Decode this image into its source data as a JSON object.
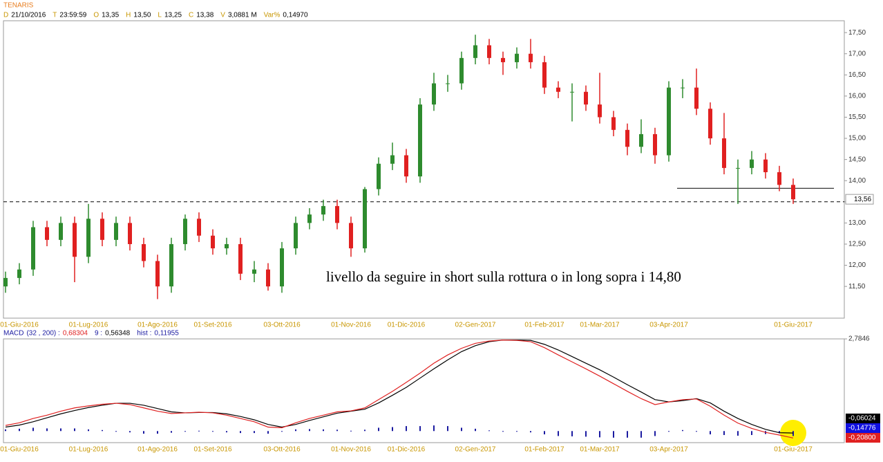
{
  "chart_data": [
    {
      "type": "candlestick",
      "title": "TENARIS",
      "info": [
        {
          "label": "D",
          "value": "21/10/2016"
        },
        {
          "label": "T",
          "value": "23:59:59"
        },
        {
          "label": "O",
          "value": "13,35"
        },
        {
          "label": "H",
          "value": "13,50"
        },
        {
          "label": "L",
          "value": "13,25"
        },
        {
          "label": "C",
          "value": "13,38"
        },
        {
          "label": "V",
          "value": "3,0881 M"
        },
        {
          "label": "Var%",
          "value": "0,14970"
        }
      ],
      "categories": [
        null,
        "01-Giu-2016",
        null,
        null,
        null,
        null,
        "01-Lug-2016",
        null,
        null,
        null,
        null,
        "01-Ago-2016",
        null,
        null,
        null,
        "01-Set-2016",
        null,
        null,
        null,
        null,
        "03-Ott-2016",
        null,
        null,
        null,
        null,
        "01-Nov-2016",
        null,
        null,
        null,
        "01-Dic-2016",
        null,
        null,
        null,
        null,
        "02-Gen-2017",
        null,
        null,
        null,
        null,
        "01-Feb-2017",
        null,
        null,
        null,
        "01-Mar-2017",
        null,
        null,
        null,
        null,
        "03-Apr-2017",
        null,
        null,
        null,
        null,
        null,
        null,
        null,
        null,
        "01-Giu-2017"
      ],
      "open": [
        11.5,
        11.7,
        11.9,
        12.9,
        12.6,
        13.0,
        12.2,
        13.1,
        12.6,
        13.0,
        12.5,
        12.1,
        11.5,
        12.5,
        13.1,
        12.7,
        12.4,
        12.5,
        11.8,
        11.9,
        11.5,
        12.4,
        13.0,
        13.2,
        13.4,
        13.0,
        12.4,
        13.8,
        14.4,
        14.6,
        14.1,
        15.8,
        16.3,
        16.3,
        16.9,
        17.2,
        16.9,
        16.8,
        17.0,
        16.8,
        16.2,
        16.1,
        16.1,
        15.8,
        15.5,
        15.2,
        14.8,
        15.1,
        14.6,
        16.2,
        16.2,
        15.7,
        15.0,
        14.3,
        14.3,
        14.5,
        14.2,
        13.9
      ],
      "high": [
        11.85,
        12.05,
        13.05,
        13.05,
        13.15,
        13.15,
        13.45,
        13.25,
        13.15,
        13.15,
        12.65,
        12.25,
        12.65,
        13.2,
        13.25,
        12.85,
        12.65,
        12.65,
        12.1,
        12.05,
        12.55,
        13.15,
        13.35,
        13.55,
        13.55,
        13.15,
        13.85,
        14.55,
        14.9,
        14.75,
        15.95,
        16.55,
        16.5,
        17.05,
        17.45,
        17.35,
        17.05,
        17.15,
        17.35,
        16.95,
        16.35,
        16.3,
        16.25,
        16.55,
        15.65,
        15.35,
        15.45,
        15.25,
        16.35,
        16.4,
        16.65,
        15.85,
        15.6,
        14.5,
        14.7,
        14.65,
        14.35,
        14.05
      ],
      "low": [
        11.35,
        11.55,
        11.75,
        12.45,
        12.45,
        11.6,
        12.05,
        12.45,
        12.45,
        12.35,
        11.95,
        11.2,
        11.35,
        12.35,
        12.55,
        12.25,
        12.25,
        11.65,
        11.6,
        11.4,
        11.35,
        12.25,
        12.85,
        13.05,
        12.85,
        12.2,
        12.3,
        13.65,
        14.25,
        13.95,
        13.95,
        15.65,
        16.1,
        16.15,
        16.75,
        16.75,
        16.5,
        16.65,
        16.65,
        16.05,
        15.95,
        15.4,
        15.65,
        15.35,
        15.05,
        14.6,
        14.65,
        14.4,
        14.45,
        15.95,
        15.55,
        14.85,
        14.15,
        13.45,
        14.15,
        14.05,
        13.75,
        13.45
      ],
      "close": [
        11.7,
        11.9,
        12.9,
        12.6,
        13.0,
        12.2,
        13.1,
        12.6,
        13.0,
        12.5,
        12.1,
        11.5,
        12.5,
        13.1,
        12.7,
        12.4,
        12.5,
        11.8,
        11.9,
        11.5,
        12.4,
        13.0,
        13.2,
        13.4,
        13.0,
        12.4,
        13.8,
        14.4,
        14.6,
        14.1,
        15.8,
        16.3,
        16.3,
        16.9,
        17.2,
        16.9,
        16.8,
        17.0,
        16.8,
        16.2,
        16.1,
        16.1,
        15.8,
        15.5,
        15.2,
        14.8,
        15.1,
        14.6,
        16.2,
        16.2,
        15.7,
        15.0,
        14.3,
        14.3,
        14.5,
        14.2,
        13.9,
        13.56
      ],
      "up_color": "#2e8b2e",
      "down_color": "#e02020",
      "ylim": [
        10.75,
        17.78
      ],
      "yticks": [
        {
          "value": 11.5,
          "label": "11,50"
        },
        {
          "value": 12,
          "label": "12,00"
        },
        {
          "value": 12.5,
          "label": "12,50"
        },
        {
          "value": 13,
          "label": "13,00"
        },
        {
          "value": 13.5,
          "label": "13,50"
        },
        {
          "value": 14,
          "label": "14,00"
        },
        {
          "value": 14.5,
          "label": "14,50"
        },
        {
          "value": 15,
          "label": "15,00"
        },
        {
          "value": 15.5,
          "label": "15,50"
        },
        {
          "value": 16,
          "label": "16,00"
        },
        {
          "value": 16.5,
          "label": "16,50"
        },
        {
          "value": 17,
          "label": "17,00"
        },
        {
          "value": 17.5,
          "label": "17,50"
        }
      ],
      "hlines": [
        {
          "value": 13.5,
          "dashed": true
        },
        {
          "value": 13.82,
          "dashed": false
        }
      ],
      "last_price": {
        "value": 13.56,
        "label": "13,56"
      },
      "annotation": "livello da seguire in short sulla rottura o in long sopra i 14,80"
    },
    {
      "type": "macd",
      "title": "MACD",
      "info": [
        {
          "label": "(32 , 200) :",
          "value": "0,68304",
          "color": "#e02020"
        },
        {
          "label": "9 :",
          "value": "0,56348",
          "color": "#000000"
        },
        {
          "label": "hist :",
          "value": "0,11955",
          "color": "#1a1aa0"
        }
      ],
      "categories": [
        null,
        "01-Giu-2016",
        null,
        null,
        null,
        null,
        "01-Lug-2016",
        null,
        null,
        null,
        null,
        "01-Ago-2016",
        null,
        null,
        null,
        "01-Set-2016",
        null,
        null,
        null,
        null,
        "03-Ott-2016",
        null,
        null,
        null,
        null,
        "01-Nov-2016",
        null,
        null,
        null,
        "01-Dic-2016",
        null,
        null,
        null,
        null,
        "02-Gen-2017",
        null,
        null,
        null,
        null,
        "01-Feb-2017",
        null,
        null,
        null,
        "01-Mar-2017",
        null,
        null,
        null,
        null,
        "03-Apr-2017",
        null,
        null,
        null,
        null,
        null,
        null,
        null,
        null,
        "01-Giu-2017"
      ],
      "series": [
        {
          "color": "#1a1aa0",
          "style": "bar",
          "values": [
            0.05,
            0.07,
            0.1,
            0.08,
            0.08,
            0.08,
            0.05,
            0.03,
            0,
            -0.04,
            -0.08,
            -0.08,
            -0.05,
            0,
            0.01,
            -0.01,
            -0.04,
            -0.06,
            -0.06,
            -0.08,
            -0.02,
            0.05,
            0.06,
            0.05,
            0.04,
            0.01,
            0.04,
            0.1,
            0.12,
            0.15,
            0.15,
            0.17,
            0.15,
            0.1,
            0.07,
            0.02,
            0,
            -0.01,
            -0.04,
            -0.1,
            -0.15,
            -0.16,
            -0.17,
            -0.19,
            -0.2,
            -0.2,
            -0.2,
            -0.15,
            0,
            0.03,
            -0.01,
            -0.1,
            -0.12,
            -0.14,
            -0.12,
            -0.09,
            -0.07,
            -0.15
          ]
        },
        {
          "color": "#000000",
          "style": "line",
          "values": [
            0.12,
            0.18,
            0.28,
            0.4,
            0.52,
            0.62,
            0.71,
            0.78,
            0.84,
            0.84,
            0.78,
            0.68,
            0.58,
            0.55,
            0.56,
            0.56,
            0.52,
            0.44,
            0.34,
            0.2,
            0.12,
            0.2,
            0.32,
            0.43,
            0.54,
            0.6,
            0.66,
            0.85,
            1.08,
            1.32,
            1.6,
            1.88,
            2.15,
            2.4,
            2.58,
            2.7,
            2.75,
            2.75,
            2.74,
            2.62,
            2.45,
            2.25,
            2.05,
            1.85,
            1.63,
            1.4,
            1.18,
            0.95,
            0.88,
            0.92,
            0.98,
            0.85,
            0.6,
            0.38,
            0.2,
            0.05,
            -0.05,
            -0.06
          ]
        },
        {
          "color": "#e02020",
          "style": "line",
          "values": [
            0.17,
            0.25,
            0.38,
            0.48,
            0.6,
            0.7,
            0.76,
            0.81,
            0.84,
            0.8,
            0.7,
            0.6,
            0.53,
            0.55,
            0.57,
            0.55,
            0.48,
            0.38,
            0.28,
            0.12,
            0.1,
            0.25,
            0.38,
            0.48,
            0.58,
            0.61,
            0.7,
            0.95,
            1.2,
            1.47,
            1.75,
            2.05,
            2.3,
            2.5,
            2.65,
            2.72,
            2.75,
            2.74,
            2.7,
            2.52,
            2.3,
            2.09,
            1.88,
            1.66,
            1.43,
            1.2,
            0.98,
            0.8,
            0.88,
            0.95,
            0.97,
            0.75,
            0.48,
            0.24,
            0.08,
            -0.04,
            -0.12,
            -0.21
          ]
        }
      ],
      "ylim": [
        -0.35,
        2.7846
      ],
      "yticks": [
        {
          "value": 2.7846,
          "label": "2,7846"
        }
      ],
      "last_values": [
        {
          "value": -0.06024,
          "label": "-0,06024",
          "color": "#000000"
        },
        {
          "value": -0.14776,
          "label": "-0,14776",
          "color": "#1010e0"
        },
        {
          "value": -0.208,
          "label": "-0,20800",
          "color": "#e02020"
        }
      ]
    }
  ]
}
